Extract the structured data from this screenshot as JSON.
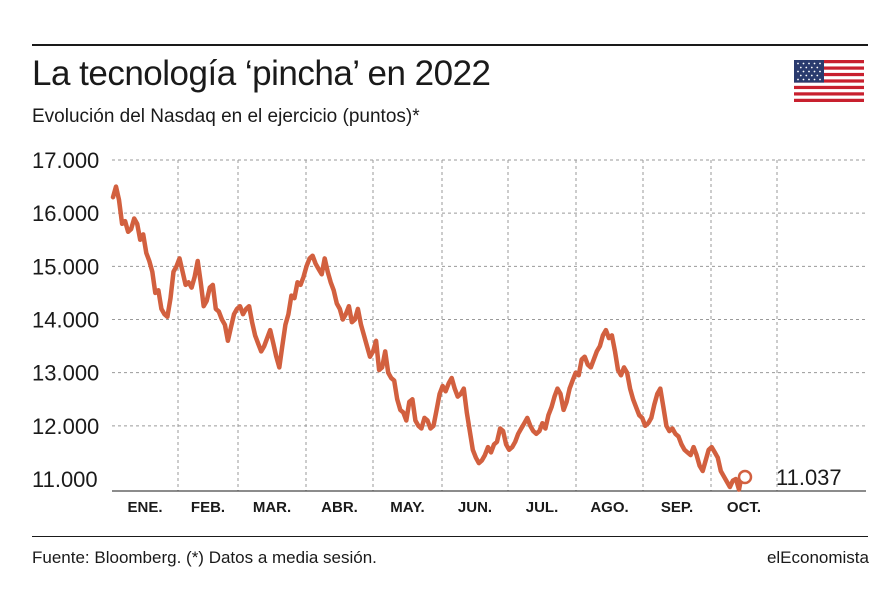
{
  "header": {
    "title": "La tecnología ‘pincha’ en 2022",
    "subtitle": "Evolución del Nasdaq en el ejercicio (puntos)*",
    "flag_icon": "us-flag-icon"
  },
  "footer": {
    "source": "Fuente: Bloomberg. (*) Datos a media sesión.",
    "brand": "elEconomista"
  },
  "colors": {
    "line": "#d2603f",
    "text": "#1a1a1a",
    "grid": "#9a9a9a"
  },
  "chart_data": {
    "type": "line",
    "title": "La tecnología ‘pincha’ en 2022",
    "subtitle": "Evolución del Nasdaq en el ejercicio (puntos)*",
    "yticks": [
      "17.000",
      "16.000",
      "15.000",
      "14.000",
      "13.000",
      "12.000",
      "11.000"
    ],
    "ylim": [
      11000,
      17000
    ],
    "months": [
      "ENE.",
      "FEB.",
      "MAR.",
      "ABR.",
      "MAY.",
      "JUN.",
      "JUL.",
      "AGO.",
      "SEP.",
      "OCT."
    ],
    "grid": true,
    "last_value_label": "11.037",
    "series": [
      {
        "values": [
          16300,
          16500,
          16250,
          15800,
          15850,
          15650,
          15700,
          15900,
          15800,
          15500,
          15600,
          15250,
          15100,
          14900,
          14500,
          14550,
          14200,
          14100,
          14050,
          14400,
          14900,
          15000,
          15150,
          14900,
          14650,
          14700,
          14600,
          14800,
          15100,
          14700,
          14250,
          14350,
          14600,
          14650,
          14200,
          14150,
          14000,
          13900,
          13600,
          13850,
          14100,
          14200,
          14250,
          14100,
          14200,
          14250,
          13950,
          13700,
          13550,
          13400,
          13500,
          13650,
          13800,
          13550,
          13300,
          13100,
          13500,
          13900,
          14100,
          14450,
          14400,
          14700,
          14650,
          14800,
          15000,
          15150,
          15200,
          15050,
          14950,
          14850,
          15150,
          14900,
          14700,
          14550,
          14300,
          14200,
          14000,
          14100,
          14250,
          13950,
          14000,
          14200,
          13900,
          13700,
          13500,
          13300,
          13400,
          13600,
          13050,
          13100,
          13400,
          13000,
          12900,
          12850,
          12500,
          12300,
          12250,
          12100,
          12450,
          12500,
          12100,
          12000,
          11950,
          12150,
          12100,
          11950,
          12000,
          12300,
          12600,
          12750,
          12650,
          12800,
          12900,
          12700,
          12550,
          12600,
          12700,
          12250,
          11900,
          11550,
          11400,
          11300,
          11350,
          11450,
          11600,
          11500,
          11650,
          11700,
          11950,
          11900,
          11650,
          11550,
          11600,
          11700,
          11850,
          11950,
          12050,
          12150,
          12000,
          11900,
          11850,
          11900,
          12050,
          11950,
          12200,
          12350,
          12550,
          12700,
          12600,
          12300,
          12450,
          12700,
          12850,
          13000,
          12950,
          13250,
          13300,
          13150,
          13100,
          13250,
          13400,
          13500,
          13700,
          13800,
          13650,
          13700,
          13400,
          13050,
          12950,
          13100,
          13000,
          12700,
          12500,
          12350,
          12200,
          12150,
          12000,
          12050,
          12150,
          12400,
          12600,
          12700,
          12350,
          12000,
          11900,
          11950,
          11850,
          11800,
          11650,
          11550,
          11500,
          11450,
          11600,
          11450,
          11250,
          11150,
          11350,
          11550,
          11600,
          11500,
          11400,
          11150,
          11050,
          10950,
          10850,
          10970,
          11000,
          10800,
          11100,
          11037
        ]
      }
    ]
  }
}
